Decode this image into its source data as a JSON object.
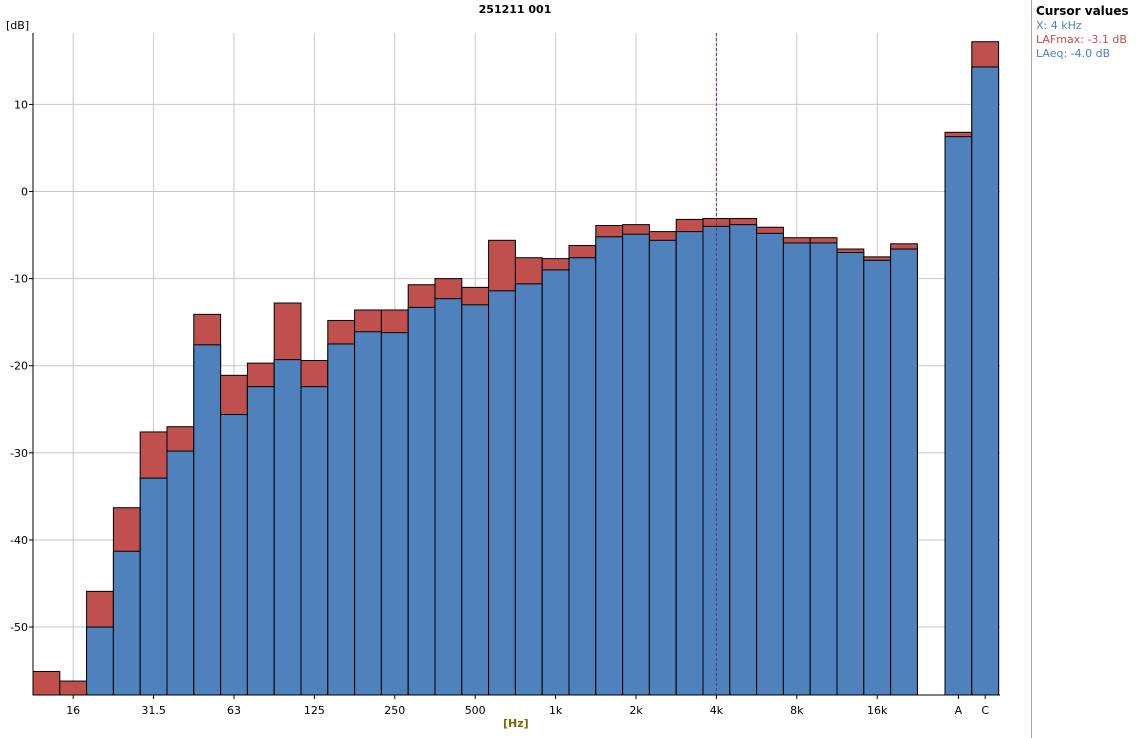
{
  "chart_data": {
    "type": "bar",
    "title": "251211 001",
    "xlabel": "[Hz]",
    "ylabel": "[dB]",
    "ylim": [
      -57.8,
      18.2
    ],
    "yticks": [
      -50,
      -40,
      -30,
      -20,
      -10,
      0,
      10
    ],
    "grid": true,
    "stacked_overlay": true,
    "categories": [
      "12.5",
      "16",
      "20",
      "25",
      "31.5",
      "40",
      "50",
      "63",
      "80",
      "100",
      "125",
      "160",
      "200",
      "250",
      "315",
      "400",
      "500",
      "630",
      "800",
      "1k",
      "1.25k",
      "1.6k",
      "2k",
      "2.5k",
      "3.15k",
      "4k",
      "5k",
      "6.3k",
      "8k",
      "10k",
      "12.5k",
      "16k",
      "20k",
      "A",
      "C"
    ],
    "xtick_labels": {
      "16": "16",
      "31.5": "31.5",
      "63": "63",
      "125": "125",
      "250": "250",
      "500": "500",
      "1k": "1k",
      "2k": "2k",
      "4k": "4k",
      "8k": "8k",
      "16k": "16k",
      "A": "A",
      "C": "C"
    },
    "series": [
      {
        "name": "LAFmax",
        "color": "#c0504d",
        "values": [
          -55.1,
          -56.2,
          -45.9,
          -36.3,
          -27.6,
          -27.0,
          -14.1,
          -21.1,
          -19.7,
          -12.8,
          -19.4,
          -14.8,
          -13.6,
          -13.6,
          -10.7,
          -10.0,
          -11.0,
          -5.6,
          -7.6,
          -7.7,
          -6.2,
          -3.9,
          -3.8,
          -4.6,
          -3.2,
          -3.1,
          -3.1,
          -4.1,
          -5.3,
          -5.3,
          -6.6,
          -7.5,
          -6.0,
          6.8,
          17.2
        ]
      },
      {
        "name": "LAeq",
        "color": "#4f81bd",
        "values": [
          -60,
          -60,
          -50.0,
          -41.3,
          -32.9,
          -29.8,
          -17.6,
          -25.6,
          -22.4,
          -19.3,
          -22.4,
          -17.5,
          -16.1,
          -16.2,
          -13.3,
          -12.3,
          -13.0,
          -11.4,
          -10.6,
          -9.0,
          -7.6,
          -5.2,
          -4.9,
          -5.6,
          -4.6,
          -4.0,
          -3.8,
          -4.8,
          -5.9,
          -5.9,
          -7.0,
          -7.9,
          -6.6,
          6.3,
          14.3
        ]
      }
    ],
    "cursor_at": "4k"
  },
  "cursor_panel": {
    "heading": "Cursor values",
    "x": "X: 4 kHz",
    "lafmax": "LAFmax: -3.1 dB",
    "laeq": "LAeq: -4.0 dB",
    "x_color": "#4f81bd",
    "lafmax_color": "#c0504d",
    "laeq_color": "#4f81bd"
  }
}
